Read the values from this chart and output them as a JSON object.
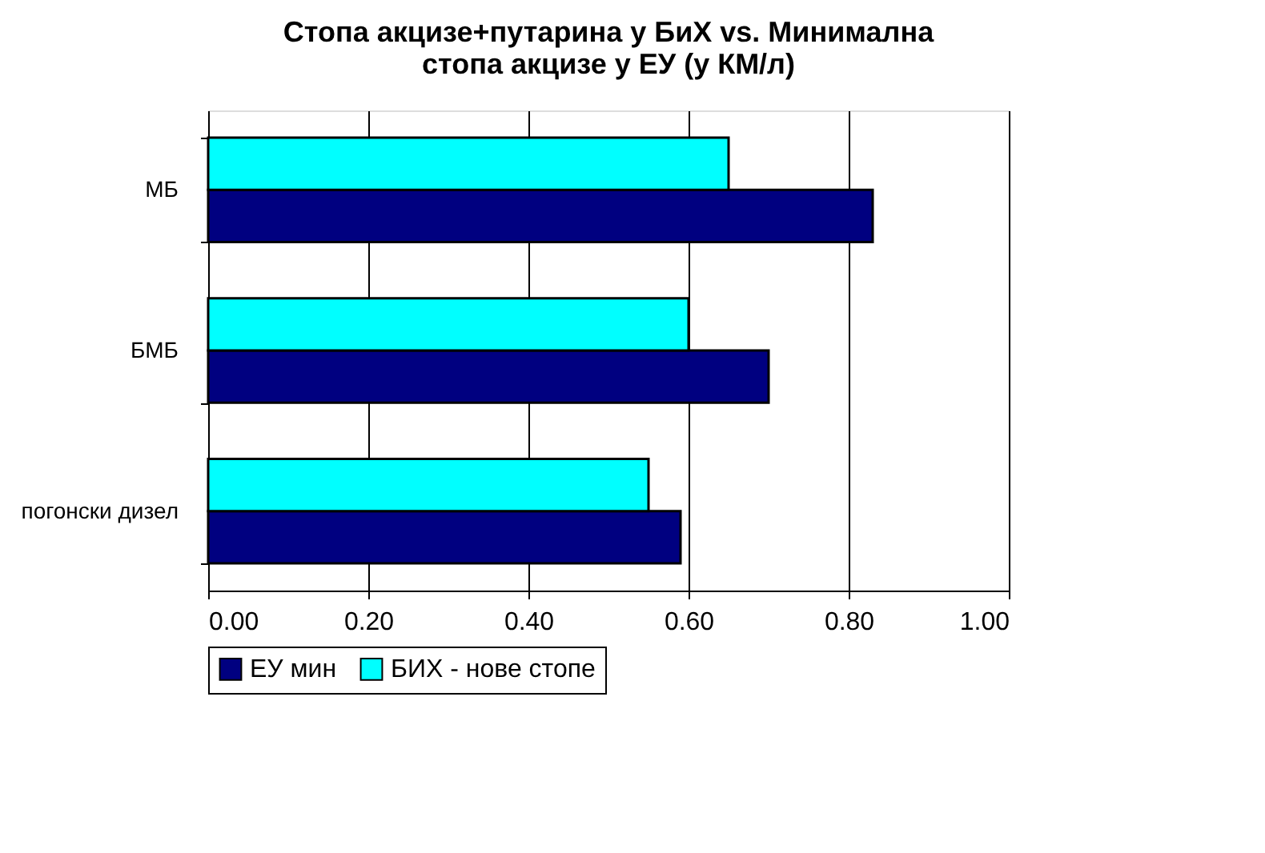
{
  "chart_data": {
    "type": "bar",
    "orientation": "horizontal",
    "title": "Стопа акцизе+путарина у БиХ vs. Минимална стопа акцизе у ЕУ (у КМ/л)",
    "categories": [
      "МБ",
      "БМБ",
      "погонски дизел"
    ],
    "series": [
      {
        "name": "ЕУ мин",
        "color": "#000080",
        "values": [
          0.83,
          0.7,
          0.59
        ]
      },
      {
        "name": "БИХ - нове стопе",
        "color": "#00ffff",
        "values": [
          0.65,
          0.6,
          0.55
        ]
      }
    ],
    "xlim": [
      0,
      1
    ],
    "xticks": [
      {
        "value": 0,
        "label": "0.00"
      },
      {
        "value": 0.2,
        "label": "0.20"
      },
      {
        "value": 0.4,
        "label": "0.40"
      },
      {
        "value": 0.6,
        "label": "0.60"
      },
      {
        "value": 0.8,
        "label": "0.80"
      },
      {
        "value": 1,
        "label": "1.00"
      }
    ],
    "grid": "x",
    "legend": "bottom"
  }
}
